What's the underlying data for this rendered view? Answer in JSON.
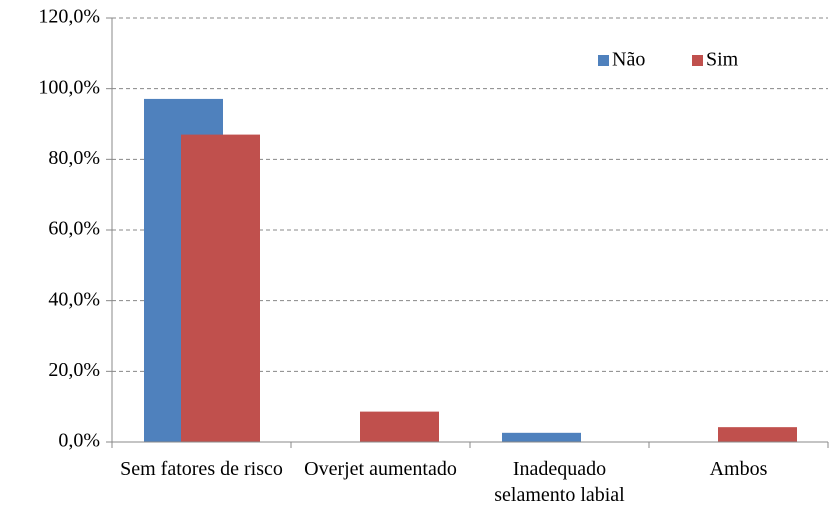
{
  "chart_data": {
    "type": "bar",
    "categories": [
      "Sem fatores de risco",
      "Overjet aumentado",
      "Inadequado selamento labial",
      "Ambos"
    ],
    "series": [
      {
        "name": "Não",
        "color": "#4f81bd",
        "values": [
          97.1,
          0,
          2.6,
          0
        ]
      },
      {
        "name": "Sim",
        "color": "#c0504d",
        "values": [
          87.0,
          8.6,
          0,
          4.2
        ]
      }
    ],
    "ylim": [
      0,
      120
    ],
    "yticks": [
      {
        "value": 0,
        "label": "0,0%"
      },
      {
        "value": 20,
        "label": "20,0%"
      },
      {
        "value": 40,
        "label": "40,0%"
      },
      {
        "value": 60,
        "label": "60,0%"
      },
      {
        "value": 80,
        "label": "80,0%"
      },
      {
        "value": 100,
        "label": "100,0%"
      },
      {
        "value": 120,
        "label": "120,0%"
      }
    ],
    "grid": true,
    "legend": "top-right"
  }
}
